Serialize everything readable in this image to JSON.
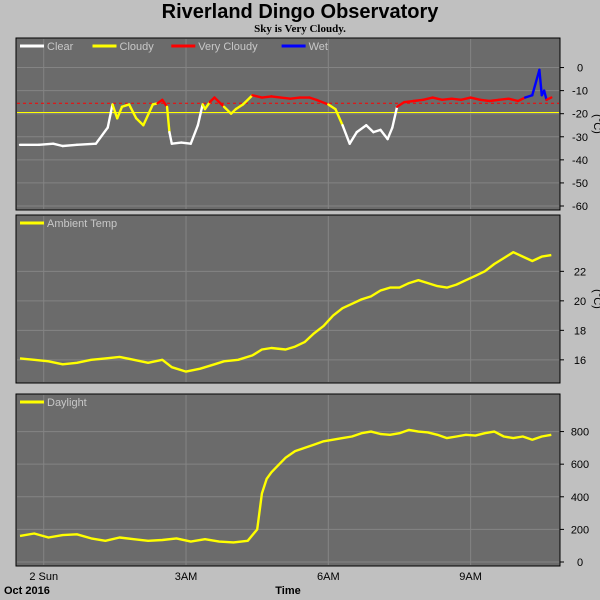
{
  "title": "Riverland Dingo Observatory",
  "subtitle": "Sky is Very Cloudy.",
  "footer": {
    "left": "Oct 2016",
    "xlabel": "Time"
  },
  "colors": {
    "panel_bg": "#6b6b6b",
    "grid": "#848484",
    "page_bg": "#c0c0c0"
  },
  "chart_data": [
    {
      "type": "line",
      "id": "cloud",
      "series": [
        {
          "name": "Clear",
          "color": "#ffffff"
        },
        {
          "name": "Cloudy",
          "color": "#ffff00"
        },
        {
          "name": "Very Cloudy",
          "color": "#ff0000"
        },
        {
          "name": "Wet",
          "color": "#0000ff"
        }
      ],
      "ylabel": "(°C)",
      "ylim": [
        -60,
        5
      ],
      "yticks": [
        0,
        -10,
        -20,
        -30,
        -40,
        -50,
        -60
      ],
      "xlim": [
        0,
        11.3
      ],
      "threshold_lines": [
        {
          "y": -15.5,
          "color": "#ff0000",
          "style": "dashed"
        },
        {
          "y": -19.5,
          "color": "#ffff00",
          "style": "solid"
        }
      ],
      "grid": true,
      "x": [
        0,
        0.4,
        0.7,
        0.9,
        1.2,
        1.6,
        1.85,
        1.95,
        2.05,
        2.15,
        2.3,
        2.45,
        2.6,
        2.8,
        2.9,
        3.0,
        3.1,
        3.15,
        3.2,
        3.4,
        3.6,
        3.75,
        3.85,
        3.9,
        4.0,
        4.1,
        4.2,
        4.3,
        4.45,
        4.55,
        4.7,
        4.9,
        5.1,
        5.3,
        5.5,
        5.7,
        5.9,
        6.1,
        6.25,
        6.5,
        6.65,
        6.8,
        6.95,
        7.1,
        7.3,
        7.45,
        7.6,
        7.75,
        7.85,
        7.95,
        8.1,
        8.3,
        8.5,
        8.7,
        8.9,
        9.1,
        9.3,
        9.5,
        9.7,
        9.9,
        10.1,
        10.3,
        10.5,
        10.65,
        10.8,
        10.95,
        11.0,
        11.05,
        11.1,
        11.2
      ],
      "y": [
        -33.5,
        -33.5,
        -33,
        -34,
        -33.5,
        -33,
        -26,
        -16,
        -22,
        -17,
        -16,
        -22,
        -25,
        -16,
        -15.5,
        -14,
        -17,
        -28,
        -33,
        -32.5,
        -33,
        -25,
        -16,
        -18,
        -15,
        -13,
        -15,
        -17,
        -20,
        -18,
        -16,
        -12,
        -13,
        -12.5,
        -13,
        -13.5,
        -13,
        -13,
        -14,
        -16,
        -18,
        -25,
        -33,
        -28,
        -25,
        -28,
        -27,
        -31,
        -26,
        -17,
        -15,
        -14.5,
        -14,
        -13,
        -14,
        -13.5,
        -14,
        -13,
        -14,
        -14.5,
        -14,
        -13.5,
        -14.5,
        -13,
        -12,
        -1,
        -12,
        -10,
        -14,
        -13
      ],
      "seg_series": [
        0,
        0,
        0,
        0,
        0,
        0,
        0,
        1,
        1,
        1,
        1,
        1,
        1,
        1,
        2,
        2,
        1,
        0,
        0,
        0,
        0,
        0,
        1,
        1,
        2,
        2,
        2,
        1,
        1,
        1,
        1,
        2,
        2,
        2,
        2,
        2,
        2,
        2,
        2,
        1,
        1,
        0,
        0,
        0,
        0,
        0,
        0,
        0,
        0,
        2,
        2,
        2,
        2,
        2,
        2,
        2,
        2,
        2,
        2,
        2,
        2,
        2,
        2,
        3,
        3,
        3,
        3,
        3,
        2
      ]
    },
    {
      "type": "line",
      "id": "temp",
      "series": [
        {
          "name": "Ambient Temp",
          "color": "#ffff00"
        }
      ],
      "ylabel": "(°C)",
      "ylim": [
        14.7,
        24.6
      ],
      "yticks": [
        16,
        18,
        20,
        22
      ],
      "xlim": [
        0,
        11.3
      ],
      "grid": true,
      "x": [
        0,
        0.3,
        0.6,
        0.9,
        1.2,
        1.5,
        1.8,
        2.1,
        2.4,
        2.7,
        3.0,
        3.2,
        3.5,
        3.8,
        4.1,
        4.3,
        4.6,
        4.9,
        5.1,
        5.3,
        5.6,
        5.8,
        6.0,
        6.2,
        6.4,
        6.6,
        6.8,
        7.0,
        7.2,
        7.4,
        7.6,
        7.8,
        8.0,
        8.2,
        8.4,
        8.6,
        8.8,
        9.0,
        9.2,
        9.4,
        9.6,
        9.8,
        10.0,
        10.2,
        10.4,
        10.6,
        10.8,
        11.0,
        11.2
      ],
      "y": [
        16.1,
        16.0,
        15.9,
        15.7,
        15.8,
        16.0,
        16.1,
        16.2,
        16.0,
        15.8,
        16.0,
        15.5,
        15.2,
        15.4,
        15.7,
        15.9,
        16.0,
        16.3,
        16.7,
        16.8,
        16.7,
        16.9,
        17.2,
        17.8,
        18.3,
        19.0,
        19.5,
        19.8,
        20.1,
        20.3,
        20.7,
        20.9,
        20.9,
        21.2,
        21.4,
        21.2,
        21.0,
        20.9,
        21.1,
        21.4,
        21.7,
        22.0,
        22.5,
        22.9,
        23.3,
        23.0,
        22.7,
        23.0,
        23.1
      ]
    },
    {
      "type": "line",
      "id": "light",
      "series": [
        {
          "name": "Daylight",
          "color": "#ffff00"
        }
      ],
      "ylim": [
        0,
        920
      ],
      "yticks": [
        0,
        200,
        400,
        600,
        800
      ],
      "xlim": [
        0,
        11.3
      ],
      "grid": true,
      "x": [
        0,
        0.3,
        0.6,
        0.9,
        1.2,
        1.5,
        1.8,
        2.1,
        2.4,
        2.7,
        3.0,
        3.3,
        3.6,
        3.9,
        4.2,
        4.5,
        4.8,
        5.0,
        5.1,
        5.2,
        5.3,
        5.4,
        5.6,
        5.8,
        6.0,
        6.2,
        6.4,
        6.6,
        6.8,
        7.0,
        7.2,
        7.4,
        7.6,
        7.8,
        8.0,
        8.2,
        8.4,
        8.6,
        8.8,
        9.0,
        9.2,
        9.4,
        9.6,
        9.8,
        10.0,
        10.2,
        10.4,
        10.6,
        10.8,
        11.0,
        11.2
      ],
      "y": [
        160,
        175,
        150,
        165,
        170,
        145,
        130,
        150,
        140,
        130,
        135,
        145,
        125,
        140,
        125,
        120,
        130,
        200,
        420,
        510,
        550,
        580,
        640,
        680,
        700,
        720,
        740,
        750,
        760,
        770,
        790,
        800,
        785,
        780,
        790,
        810,
        800,
        795,
        780,
        760,
        770,
        780,
        775,
        790,
        800,
        770,
        760,
        770,
        750,
        770,
        780
      ]
    }
  ],
  "x_axis": {
    "ticks": [
      {
        "x": 0.5,
        "label": "2 Sun"
      },
      {
        "x": 3.5,
        "label": "3AM"
      },
      {
        "x": 6.5,
        "label": "6AM"
      },
      {
        "x": 9.5,
        "label": "9AM"
      }
    ]
  }
}
